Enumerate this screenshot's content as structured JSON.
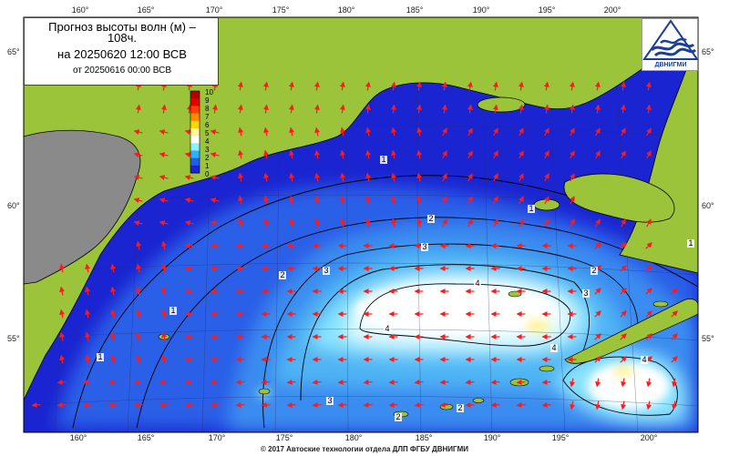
{
  "header": {
    "title_line1": "Прогноз высоты волн (м) –",
    "title_line2": "108ч.",
    "title_line3": "на 20250620 12:00 ВСВ",
    "title_line4": "от 20250616 00:00 ВСВ"
  },
  "logo": {
    "text": "ДВНИГМИ",
    "icon": "wave-logo-icon"
  },
  "footer": {
    "copyright": "© 2017 Автоские технологии отдела ДЛП ФГБУ ДВНИГМИ"
  },
  "axes": {
    "longitudes": [
      "160°",
      "165°",
      "170°",
      "175°",
      "180°",
      "185°",
      "190°",
      "195°",
      "200°"
    ],
    "latitudes": [
      "65°",
      "60°",
      "55°"
    ]
  },
  "color_scale": {
    "labels": [
      "10",
      "9",
      "8",
      "7",
      "6",
      "5",
      "4",
      "3",
      "2",
      "1",
      "0"
    ],
    "colors": [
      "#b00000",
      "#e00000",
      "#ff4000",
      "#ff8a00",
      "#ffd400",
      "#fff59a",
      "#ffffff",
      "#8ef0ff",
      "#2fb0ff",
      "#1f5fe8",
      "#1a24d0"
    ]
  },
  "contour_labels": [
    "1",
    "1",
    "1",
    "1",
    "1",
    "2",
    "2",
    "2",
    "2",
    "2",
    "3",
    "3",
    "3",
    "3",
    "4",
    "4",
    "4",
    "4"
  ],
  "colors": {
    "land": "#9bc43a",
    "land_gray": "#8a8a8a",
    "sea_deep": "#1a24d0",
    "sea_mid": "#2a5fe8",
    "sea_light": "#4fb4f4",
    "sea_cyan": "#9ff0ff",
    "arrow": "#ff1a1a"
  }
}
